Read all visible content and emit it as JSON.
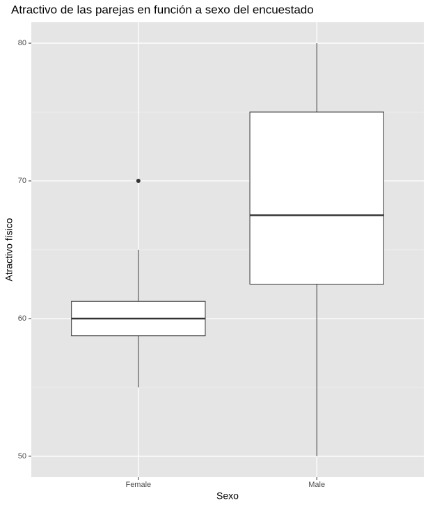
{
  "chart_data": {
    "type": "boxplot",
    "title": "Atractivo de las parejas en función a sexo del encuestado",
    "x_label": "Sexo",
    "y_label": "Atractivo físico",
    "categories": [
      "Female",
      "Male"
    ],
    "boxes": [
      {
        "min": 55,
        "q1": 58.75,
        "median": 60,
        "q3": 61.25,
        "max": 65,
        "outliers": [
          70
        ]
      },
      {
        "min": 50,
        "q1": 62.5,
        "median": 67.5,
        "q3": 75,
        "max": 80,
        "outliers": []
      }
    ],
    "ylim": [
      48.48,
      81.52
    ],
    "yticks": [
      50,
      60,
      70,
      80
    ],
    "yminor": [
      55,
      65,
      75
    ],
    "grid": true,
    "panel_color": "#e5e5e5",
    "box_color": "#ffffff",
    "line_color": "#333333"
  }
}
